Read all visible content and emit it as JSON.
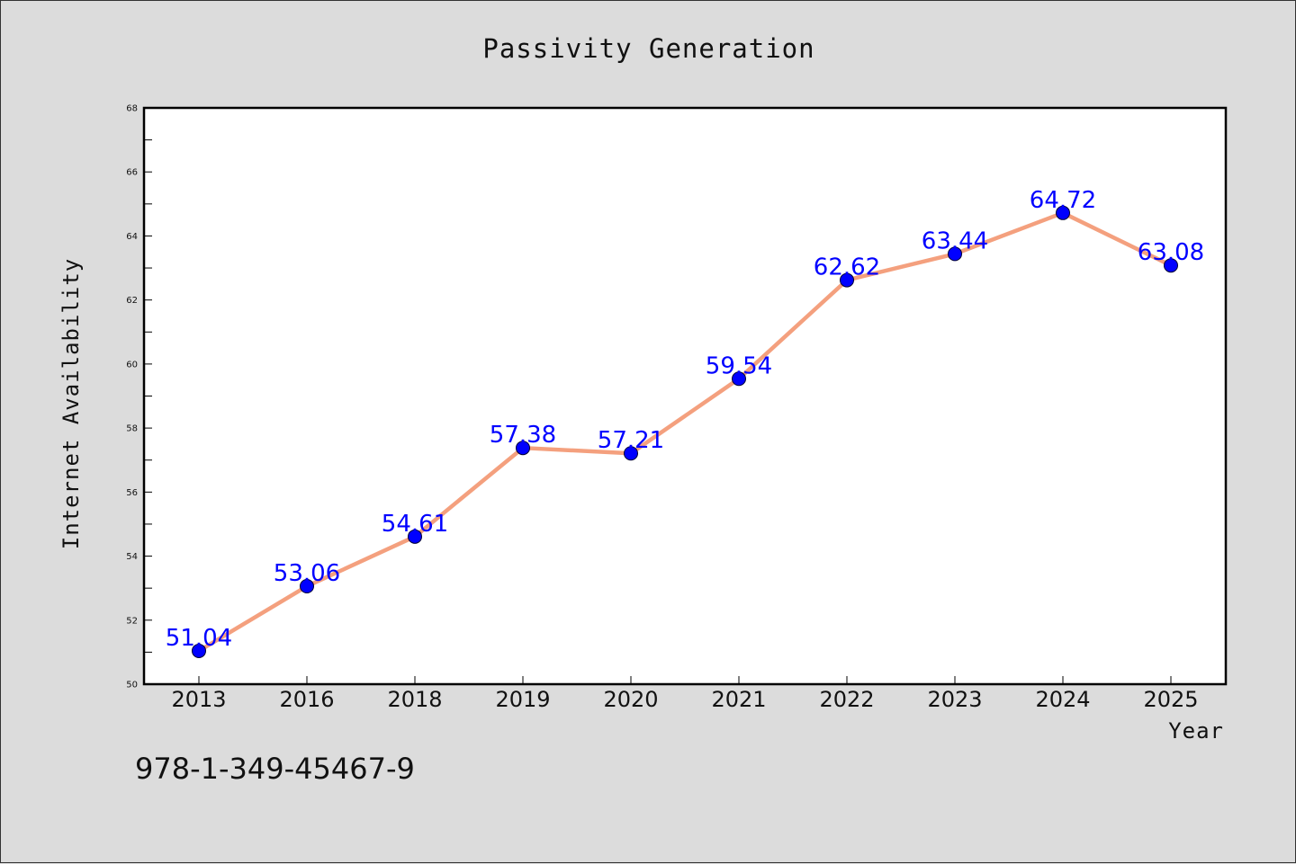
{
  "chart_data": {
    "type": "line",
    "title": "Passivity Generation",
    "xlabel": "Year",
    "ylabel": "Internet Availability",
    "categories": [
      "2013",
      "2016",
      "2018",
      "2019",
      "2020",
      "2021",
      "2022",
      "2023",
      "2024",
      "2025"
    ],
    "values": [
      51.04,
      53.06,
      54.61,
      57.38,
      57.21,
      59.54,
      62.62,
      63.44,
      64.72,
      63.08
    ],
    "data_labels": [
      "51.04",
      "53.06",
      "54.61",
      "57.38",
      "57.21",
      "59.54",
      "62.62",
      "63.44",
      "64.72",
      "63.08"
    ],
    "ylim": [
      50,
      68
    ],
    "yticks": [
      50,
      52,
      54,
      56,
      58,
      60,
      62,
      64,
      66,
      68
    ],
    "grid": false,
    "legend": "none",
    "line_color": "#f4a07e",
    "marker_color": "#0000ff",
    "label_color": "#0000ff"
  },
  "annotation": {
    "isbn": "978-1-349-45467-9"
  }
}
